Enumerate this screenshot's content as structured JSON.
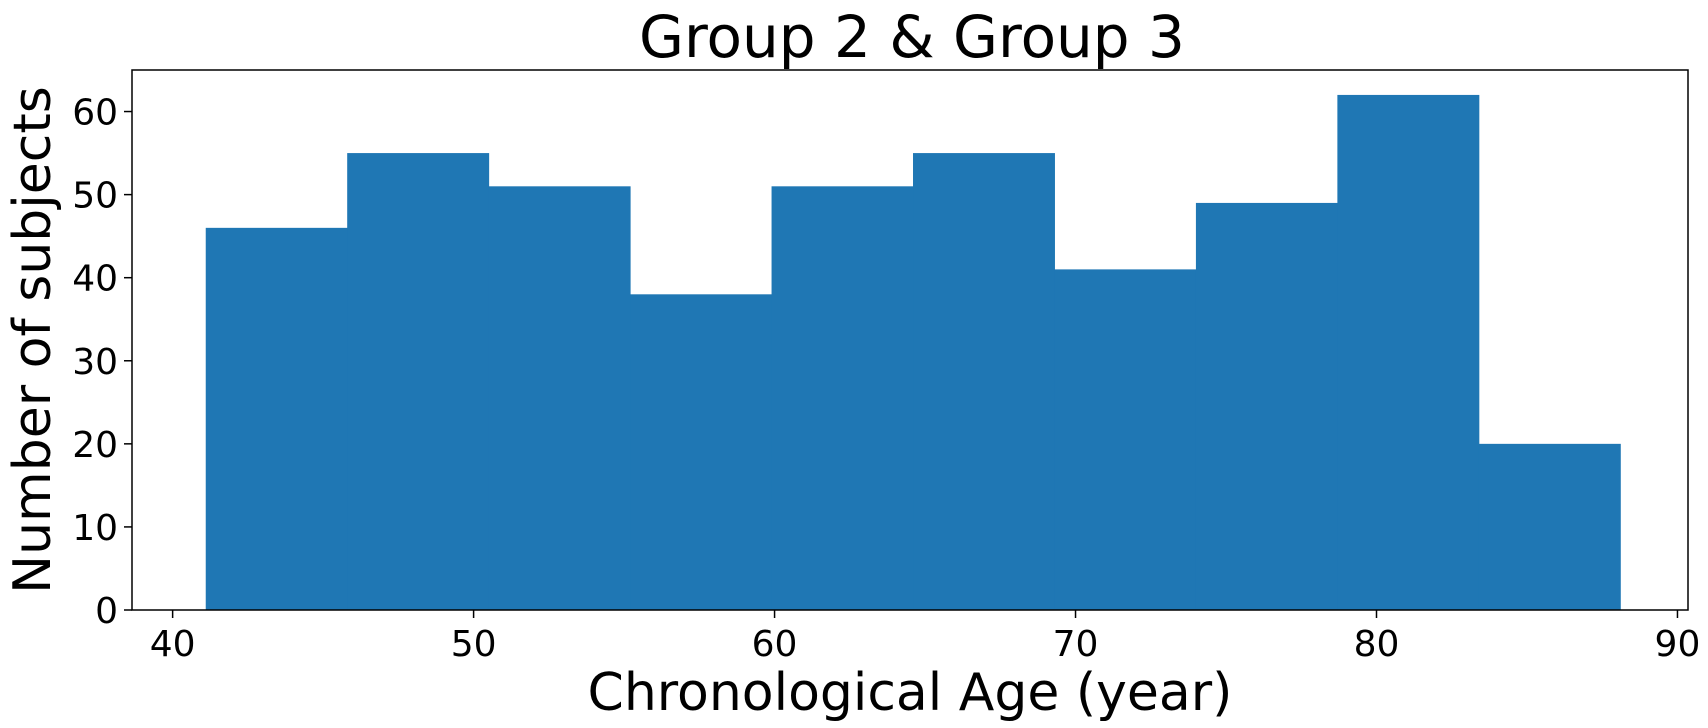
{
  "chart_data": {
    "type": "bar",
    "title": "Group 2 & Group 3",
    "xlabel": "Chronological Age (year)",
    "ylabel": "Number of subjects",
    "bar_color": "#1f77b4",
    "xlim": [
      38.65,
      90.35
    ],
    "ylim": [
      0,
      65
    ],
    "grid": false,
    "x_ticks": [
      40,
      50,
      60,
      70,
      80,
      90
    ],
    "y_ticks": [
      0,
      10,
      20,
      30,
      40,
      50,
      60
    ],
    "bins": [
      {
        "x0": 41.1,
        "x1": 45.8,
        "value": 46
      },
      {
        "x0": 45.8,
        "x1": 50.5,
        "value": 55
      },
      {
        "x0": 50.5,
        "x1": 55.2,
        "value": 51
      },
      {
        "x0": 55.2,
        "x1": 59.9,
        "value": 38
      },
      {
        "x0": 59.9,
        "x1": 64.6,
        "value": 51
      },
      {
        "x0": 64.6,
        "x1": 69.3,
        "value": 55
      },
      {
        "x0": 69.3,
        "x1": 74.0,
        "value": 41
      },
      {
        "x0": 74.0,
        "x1": 78.7,
        "value": 49
      },
      {
        "x0": 78.7,
        "x1": 83.4,
        "value": 62
      },
      {
        "x0": 83.4,
        "x1": 88.1,
        "value": 20
      }
    ]
  }
}
